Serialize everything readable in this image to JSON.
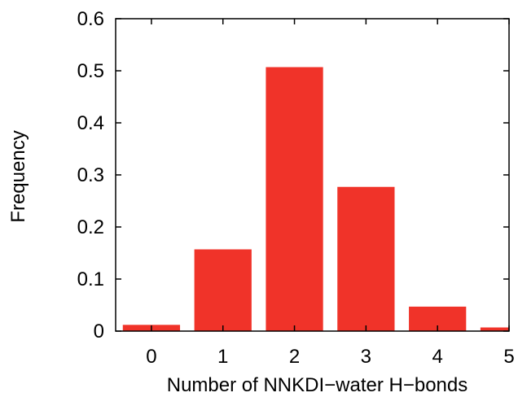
{
  "chart_data": {
    "type": "bar",
    "categories": [
      "0",
      "1",
      "2",
      "3",
      "4",
      "5"
    ],
    "values": [
      0.012,
      0.157,
      0.507,
      0.277,
      0.047,
      0.007
    ],
    "title": "",
    "xlabel": "Number of NNKDI−water H−bonds",
    "ylabel": "Frequency",
    "ylim": [
      0,
      0.6
    ],
    "xlim": [
      -0.5,
      5
    ],
    "yticks": [
      "0",
      "0.1",
      "0.2",
      "0.3",
      "0.4",
      "0.5",
      "0.6"
    ],
    "bar_width": 0.8,
    "bar_color": "#f03329",
    "grid": false,
    "legend": "none"
  }
}
